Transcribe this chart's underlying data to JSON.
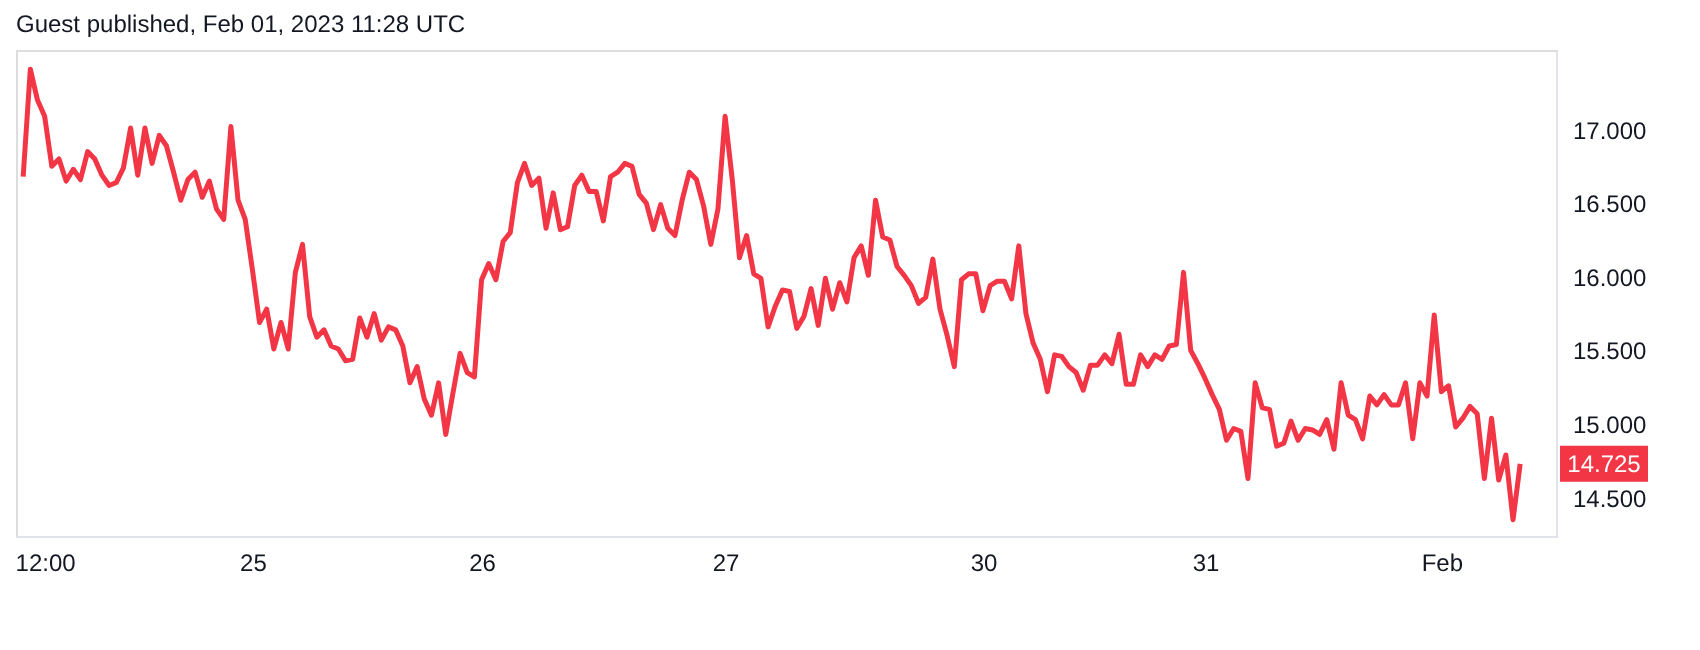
{
  "chart_data": {
    "type": "line",
    "title": "Guest published, Feb 01, 2023 11:28 UTC",
    "categories": [
      null,
      null,
      null,
      "12:00",
      null,
      null,
      null,
      null,
      null,
      null,
      null,
      null,
      null,
      null,
      null,
      null,
      null,
      null,
      null,
      null,
      null,
      null,
      null,
      null,
      null,
      null,
      null,
      null,
      null,
      null,
      null,
      null,
      "25",
      null,
      null,
      null,
      null,
      null,
      null,
      null,
      null,
      null,
      null,
      null,
      null,
      null,
      null,
      null,
      null,
      null,
      null,
      null,
      null,
      null,
      null,
      null,
      null,
      null,
      null,
      null,
      null,
      null,
      null,
      null,
      "26",
      null,
      null,
      null,
      null,
      null,
      null,
      null,
      null,
      null,
      null,
      null,
      null,
      null,
      null,
      null,
      null,
      null,
      null,
      null,
      null,
      null,
      null,
      null,
      null,
      null,
      null,
      null,
      null,
      null,
      null,
      null,
      null,
      null,
      "27",
      null,
      null,
      null,
      null,
      null,
      null,
      null,
      null,
      null,
      null,
      null,
      null,
      null,
      null,
      null,
      null,
      null,
      null,
      null,
      null,
      null,
      null,
      null,
      null,
      null,
      null,
      null,
      null,
      null,
      null,
      null,
      null,
      null,
      null,
      null,
      "30",
      null,
      null,
      null,
      null,
      null,
      null,
      null,
      null,
      null,
      null,
      null,
      null,
      null,
      null,
      null,
      null,
      null,
      null,
      null,
      null,
      null,
      null,
      null,
      null,
      null,
      null,
      null,
      null,
      null,
      null,
      "31",
      null,
      null,
      null,
      null,
      null,
      null,
      null,
      null,
      null,
      null,
      null,
      null,
      null,
      null,
      null,
      null,
      null,
      null,
      null,
      null,
      null,
      null,
      null,
      null,
      null,
      null,
      null,
      null,
      null,
      null,
      null,
      null,
      "Feb",
      null,
      null,
      null,
      null,
      null,
      null,
      null,
      null,
      null,
      null,
      null
    ],
    "series": [
      {
        "color": "#f23645",
        "values": [
          16.68,
          17.41,
          17.2,
          17.09,
          16.75,
          16.8,
          16.65,
          16.73,
          16.66,
          16.85,
          16.8,
          16.69,
          16.62,
          16.64,
          16.74,
          17.01,
          16.69,
          17.01,
          16.77,
          16.96,
          16.89,
          16.71,
          16.52,
          16.66,
          16.71,
          16.54,
          16.65,
          16.46,
          16.39,
          17.02,
          16.52,
          16.39,
          16.05,
          15.69,
          15.78,
          15.51,
          15.69,
          15.51,
          16.03,
          16.22,
          15.73,
          15.59,
          15.64,
          15.53,
          15.51,
          15.43,
          15.44,
          15.72,
          15.59,
          15.75,
          15.57,
          15.66,
          15.64,
          15.53,
          15.28,
          15.39,
          15.17,
          15.06,
          15.28,
          14.93,
          15.21,
          15.48,
          15.35,
          15.32,
          15.98,
          16.09,
          15.98,
          16.24,
          16.3,
          16.64,
          16.77,
          16.62,
          16.67,
          16.33,
          16.57,
          16.32,
          16.34,
          16.62,
          16.69,
          16.58,
          16.58,
          16.38,
          16.68,
          16.71,
          16.77,
          16.75,
          16.56,
          16.5,
          16.32,
          16.49,
          16.33,
          16.28,
          16.52,
          16.71,
          16.66,
          16.48,
          16.22,
          16.46,
          17.09,
          16.66,
          16.13,
          16.28,
          16.02,
          15.99,
          15.66,
          15.8,
          15.91,
          15.9,
          15.65,
          15.73,
          15.92,
          15.67,
          15.99,
          15.78,
          15.96,
          15.83,
          16.13,
          16.21,
          16.01,
          16.52,
          16.27,
          16.25,
          16.07,
          16.01,
          15.94,
          15.82,
          15.86,
          16.12,
          15.78,
          15.6,
          15.39,
          15.98,
          16.02,
          16.02,
          15.77,
          15.94,
          15.97,
          15.97,
          15.85,
          16.21,
          15.75,
          15.55,
          15.44,
          15.22,
          15.47,
          15.46,
          15.39,
          15.35,
          15.23,
          15.4,
          15.4,
          15.47,
          15.41,
          15.61,
          15.27,
          15.27,
          15.47,
          15.39,
          15.47,
          15.44,
          15.53,
          15.54,
          16.03,
          15.5,
          15.41,
          15.31,
          15.2,
          15.1,
          14.89,
          14.97,
          14.95,
          14.63,
          15.28,
          15.11,
          15.1,
          14.85,
          14.87,
          15.02,
          14.89,
          14.97,
          14.96,
          14.93,
          15.03,
          14.83,
          15.28,
          15.06,
          15.03,
          14.9,
          15.19,
          15.13,
          15.2,
          15.13,
          15.13,
          15.28,
          14.9,
          15.28,
          15.19,
          15.74,
          15.22,
          15.26,
          14.98,
          15.04,
          15.12,
          15.07,
          14.63,
          15.04,
          14.62,
          14.79,
          14.35,
          14.73
        ]
      }
    ],
    "ylim": [
      14.24,
      17.54
    ],
    "yticks": [
      {
        "value": 14.5,
        "label": "14.500"
      },
      {
        "value": 15.0,
        "label": "15.000"
      },
      {
        "value": 15.5,
        "label": "15.500"
      },
      {
        "value": 16.0,
        "label": "16.000"
      },
      {
        "value": 16.5,
        "label": "16.500"
      },
      {
        "value": 17.0,
        "label": "17.000"
      }
    ],
    "annotations": [
      "14.725"
    ],
    "grid": false,
    "marker": "none",
    "line_style": "solid"
  }
}
